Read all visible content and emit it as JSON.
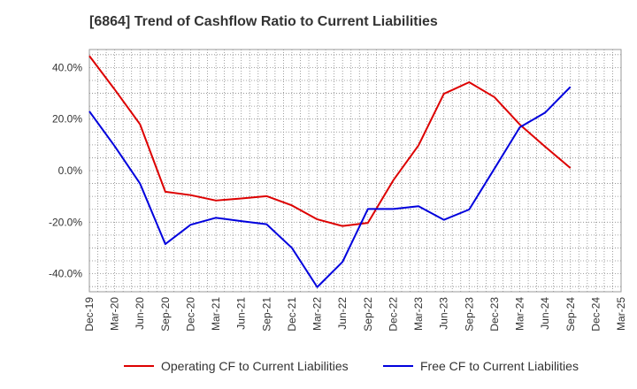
{
  "chart_data": {
    "type": "line",
    "title": "[6864]  Trend of Cashflow Ratio to Current Liabilities",
    "xlabel": "",
    "ylabel": "",
    "x": [
      "Dec-19",
      "Mar-20",
      "Jun-20",
      "Sep-20",
      "Dec-20",
      "Mar-21",
      "Jun-21",
      "Sep-21",
      "Dec-21",
      "Mar-22",
      "Jun-22",
      "Sep-22",
      "Dec-22",
      "Mar-23",
      "Jun-23",
      "Sep-23",
      "Dec-23",
      "Mar-24",
      "Jun-24",
      "Sep-24",
      "Dec-24",
      "Mar-25"
    ],
    "ylim": [
      -47,
      47
    ],
    "yticks": [
      40,
      20,
      0,
      -20,
      -40
    ],
    "ytick_labels": [
      "40.0%",
      "20.0%",
      "0.0%",
      "-20.0%",
      "-40.0%"
    ],
    "grid": true,
    "legend_position": "bottom",
    "series": [
      {
        "name": "Operating CF to Current Liabilities",
        "color": "#dd0000",
        "values": [
          44.5,
          31.5,
          18.0,
          -8.2,
          -9.5,
          -11.6,
          -10.8,
          -9.9,
          -13.5,
          -18.9,
          -21.5,
          -20.3,
          -3.8,
          9.8,
          29.8,
          34.3,
          28.5,
          17.9,
          9.3,
          1.0,
          null,
          null
        ]
      },
      {
        "name": "Free CF to Current Liabilities",
        "color": "#0000dd",
        "values": [
          23.0,
          9.5,
          -5.0,
          -28.5,
          -21.0,
          -18.3,
          -19.6,
          -20.8,
          -30.0,
          -45.2,
          -35.4,
          -14.9,
          -14.9,
          -13.8,
          -19.1,
          -15.1,
          0.8,
          16.8,
          22.5,
          32.5,
          null,
          null
        ]
      }
    ]
  }
}
